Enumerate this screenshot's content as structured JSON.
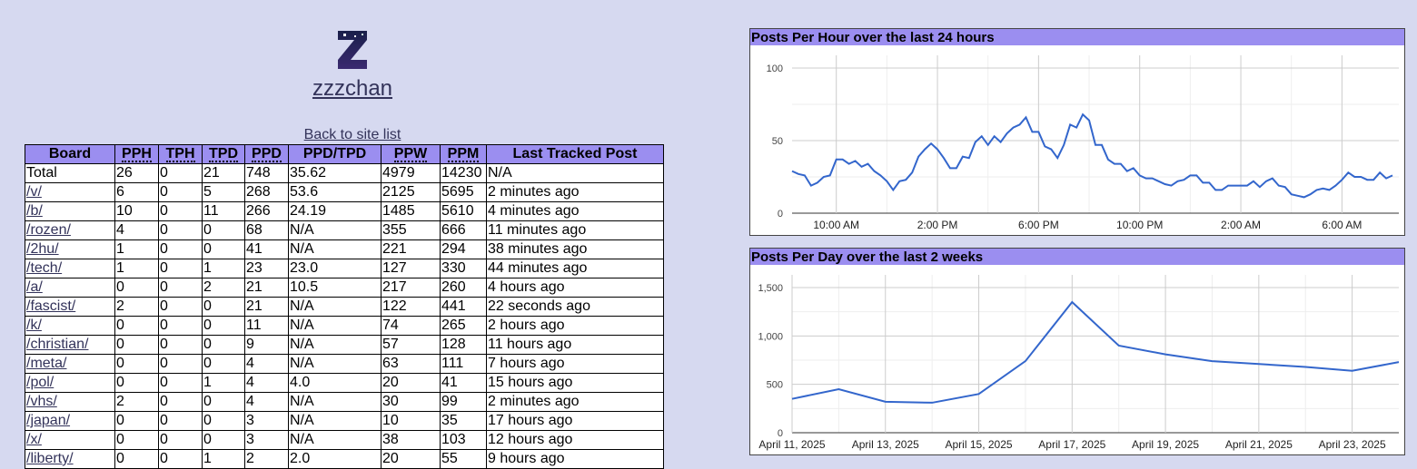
{
  "header": {
    "site_name": "zzzchan",
    "back_link": "Back to site list"
  },
  "table": {
    "columns": [
      "Board",
      "PPH",
      "TPH",
      "TPD",
      "PPD",
      "PPD/TPD",
      "PPW",
      "PPM",
      "Last Tracked Post"
    ],
    "rows": [
      [
        "Total",
        "26",
        "0",
        "21",
        "748",
        "35.62",
        "4979",
        "14230",
        "N/A"
      ],
      [
        "/v/",
        "6",
        "0",
        "5",
        "268",
        "53.6",
        "2125",
        "5695",
        "2 minutes ago"
      ],
      [
        "/b/",
        "10",
        "0",
        "11",
        "266",
        "24.19",
        "1485",
        "5610",
        "4 minutes ago"
      ],
      [
        "/rozen/",
        "4",
        "0",
        "0",
        "68",
        "N/A",
        "355",
        "666",
        "11 minutes ago"
      ],
      [
        "/2hu/",
        "1",
        "0",
        "0",
        "41",
        "N/A",
        "221",
        "294",
        "38 minutes ago"
      ],
      [
        "/tech/",
        "1",
        "0",
        "1",
        "23",
        "23.0",
        "127",
        "330",
        "44 minutes ago"
      ],
      [
        "/a/",
        "0",
        "0",
        "2",
        "21",
        "10.5",
        "217",
        "260",
        "4 hours ago"
      ],
      [
        "/fascist/",
        "2",
        "0",
        "0",
        "21",
        "N/A",
        "122",
        "441",
        "22 seconds ago"
      ],
      [
        "/k/",
        "0",
        "0",
        "0",
        "11",
        "N/A",
        "74",
        "265",
        "2 hours ago"
      ],
      [
        "/christian/",
        "0",
        "0",
        "0",
        "9",
        "N/A",
        "57",
        "128",
        "11 hours ago"
      ],
      [
        "/meta/",
        "0",
        "0",
        "0",
        "4",
        "N/A",
        "63",
        "111",
        "7 hours ago"
      ],
      [
        "/pol/",
        "0",
        "0",
        "1",
        "4",
        "4.0",
        "20",
        "41",
        "15 hours ago"
      ],
      [
        "/vhs/",
        "2",
        "0",
        "0",
        "4",
        "N/A",
        "30",
        "99",
        "2 minutes ago"
      ],
      [
        "/japan/",
        "0",
        "0",
        "0",
        "3",
        "N/A",
        "10",
        "35",
        "17 hours ago"
      ],
      [
        "/x/",
        "0",
        "0",
        "0",
        "3",
        "N/A",
        "38",
        "103",
        "12 hours ago"
      ],
      [
        "/liberty/",
        "0",
        "0",
        "1",
        "2",
        "2.0",
        "20",
        "55",
        "9 hours ago"
      ]
    ]
  },
  "chart_data": [
    {
      "type": "line",
      "title": "Posts Per Hour over the last 24 hours",
      "x": [
        8.25,
        8.5,
        8.75,
        9,
        9.25,
        9.5,
        9.75,
        10,
        10.25,
        10.5,
        10.75,
        11,
        11.25,
        11.5,
        11.75,
        12,
        12.25,
        12.5,
        12.75,
        13,
        13.25,
        13.5,
        13.75,
        14,
        14.25,
        14.5,
        14.75,
        15,
        15.25,
        15.5,
        15.75,
        16,
        16.25,
        16.5,
        16.75,
        17,
        17.25,
        17.5,
        17.75,
        18,
        18.25,
        18.5,
        18.75,
        19,
        19.25,
        19.5,
        19.75,
        20,
        20.25,
        20.5,
        20.75,
        21,
        21.25,
        21.5,
        21.75,
        22,
        22.25,
        22.5,
        22.75,
        23,
        23.25,
        23.5,
        23.75,
        24,
        24.25,
        24.5,
        24.75,
        25,
        25.25,
        25.5,
        25.75,
        26,
        26.25,
        26.5,
        26.75,
        27,
        27.25,
        27.5,
        27.75,
        28,
        28.25,
        28.5,
        28.75,
        29,
        29.25,
        29.5,
        29.75,
        30,
        30.25,
        30.5,
        30.75,
        31,
        31.25,
        31.5,
        31.75,
        32
      ],
      "series": [
        {
          "color": "#3366cc",
          "values": [
            29,
            27,
            26,
            19,
            21,
            25,
            26,
            37,
            37,
            34,
            36,
            32,
            34,
            29,
            26,
            22,
            16,
            22,
            23,
            28,
            39,
            44,
            48,
            44,
            38,
            31,
            31,
            39,
            38,
            49,
            53,
            47,
            53,
            49,
            55,
            59,
            61,
            66,
            56,
            56,
            46,
            44,
            38,
            47,
            61,
            59,
            68,
            64,
            47,
            47,
            37,
            34,
            34,
            29,
            31,
            26,
            24,
            24,
            22,
            20,
            19,
            22,
            23,
            26,
            26,
            21,
            21,
            16,
            16,
            19,
            19,
            19,
            19,
            22,
            18,
            22,
            24,
            19,
            18,
            13,
            12,
            11,
            13,
            16,
            17,
            16,
            19,
            23,
            28,
            25,
            25,
            23,
            23,
            28,
            24,
            26
          ]
        }
      ],
      "xlim": [
        8.25,
        32.25
      ],
      "xticks": [
        {
          "value": 10,
          "label": "10:00 AM"
        },
        {
          "value": 14,
          "label": "2:00 PM"
        },
        {
          "value": 18,
          "label": "6:00 PM"
        },
        {
          "value": 22,
          "label": "10:00 PM"
        },
        {
          "value": 26,
          "label": "2:00 AM"
        },
        {
          "value": 30,
          "label": "6:00 AM"
        }
      ],
      "ylim": [
        0,
        100
      ],
      "yticks": [
        0,
        50,
        100
      ],
      "grid": true
    },
    {
      "type": "line",
      "title": "Posts Per Day over the last 2 weeks",
      "x": [
        "2025-04-11",
        "2025-04-12",
        "2025-04-13",
        "2025-04-14",
        "2025-04-15",
        "2025-04-16",
        "2025-04-17",
        "2025-04-18",
        "2025-04-19",
        "2025-04-20",
        "2025-04-21",
        "2025-04-22",
        "2025-04-23",
        "2025-04-24"
      ],
      "series": [
        {
          "color": "#3366cc",
          "values": [
            350,
            450,
            320,
            310,
            400,
            740,
            1350,
            900,
            810,
            740,
            710,
            680,
            640,
            730
          ]
        }
      ],
      "xlim": [
        "2025-04-11",
        "2025-04-24"
      ],
      "xticks": [
        {
          "value": "2025-04-11",
          "label": "April 11, 2025"
        },
        {
          "value": "2025-04-13",
          "label": "April 13, 2025"
        },
        {
          "value": "2025-04-15",
          "label": "April 15, 2025"
        },
        {
          "value": "2025-04-17",
          "label": "April 17, 2025"
        },
        {
          "value": "2025-04-19",
          "label": "April 19, 2025"
        },
        {
          "value": "2025-04-21",
          "label": "April 21, 2025"
        },
        {
          "value": "2025-04-23",
          "label": "April 23, 2025"
        }
      ],
      "ylim": [
        0,
        1500
      ],
      "yticks": [
        0,
        500,
        {
          "value": 1000,
          "label": "1,000"
        },
        {
          "value": 1500,
          "label": "1,500"
        }
      ],
      "grid": true
    }
  ]
}
